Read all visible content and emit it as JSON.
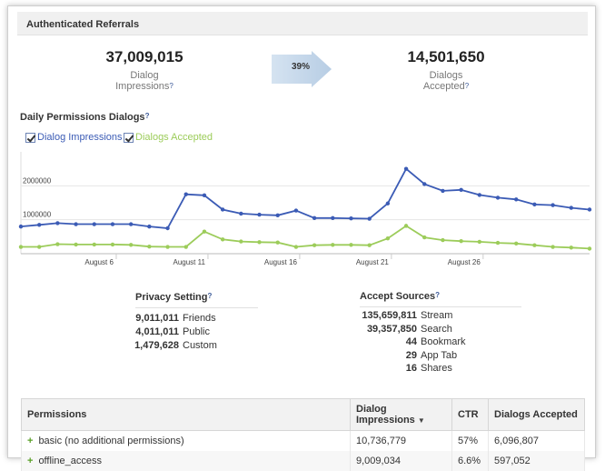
{
  "header": {
    "title": "Authenticated Referrals"
  },
  "summary": {
    "impressions": {
      "value": "37,009,015",
      "label_line1": "Dialog",
      "label_line2": "Impressions"
    },
    "conversion": {
      "percent": "39%"
    },
    "accepted": {
      "value": "14,501,650",
      "label_line1": "Dialogs",
      "label_line2": "Accepted"
    },
    "help_glyph": "?"
  },
  "chart": {
    "title": "Daily Permissions Dialogs",
    "legend": [
      {
        "label": "Dialog Impressions",
        "color": "#3b5bb5"
      },
      {
        "label": "Dialogs Accepted",
        "color": "#9ccc5a"
      }
    ]
  },
  "chart_data": {
    "type": "line",
    "x": [
      "Aug 1",
      "Aug 2",
      "Aug 3",
      "Aug 4",
      "Aug 5",
      "Aug 6",
      "Aug 7",
      "Aug 8",
      "Aug 9",
      "Aug 10",
      "Aug 11",
      "Aug 12",
      "Aug 13",
      "Aug 14",
      "Aug 15",
      "Aug 16",
      "Aug 17",
      "Aug 18",
      "Aug 19",
      "Aug 20",
      "Aug 21",
      "Aug 22",
      "Aug 23",
      "Aug 24",
      "Aug 25",
      "Aug 26",
      "Aug 27",
      "Aug 28",
      "Aug 29",
      "Aug 30",
      "Aug 31",
      "Sep 1"
    ],
    "x_tick_labels": [
      "August 6",
      "August 11",
      "August 16",
      "August 21",
      "August 26"
    ],
    "x_tick_indices": [
      5,
      10,
      15,
      20,
      25
    ],
    "y_tick_labels": [
      "2000000",
      "1000000"
    ],
    "y_ticks": [
      2000000,
      1000000
    ],
    "ylim": [
      0,
      3000000
    ],
    "series": [
      {
        "name": "Dialog Impressions",
        "color": "#3b5bb5",
        "values": [
          800000,
          850000,
          900000,
          870000,
          870000,
          870000,
          870000,
          800000,
          750000,
          1750000,
          1720000,
          1300000,
          1180000,
          1150000,
          1130000,
          1270000,
          1050000,
          1050000,
          1040000,
          1030000,
          1480000,
          2500000,
          2050000,
          1850000,
          1880000,
          1730000,
          1650000,
          1600000,
          1450000,
          1430000,
          1350000,
          1300000
        ]
      },
      {
        "name": "Dialogs Accepted",
        "color": "#9ccc5a",
        "values": [
          200000,
          200000,
          280000,
          270000,
          270000,
          270000,
          260000,
          210000,
          200000,
          200000,
          650000,
          420000,
          360000,
          340000,
          330000,
          200000,
          250000,
          260000,
          260000,
          250000,
          450000,
          820000,
          480000,
          400000,
          370000,
          350000,
          320000,
          300000,
          250000,
          200000,
          180000,
          150000
        ]
      }
    ],
    "grid": true
  },
  "privacy": {
    "title": "Privacy Setting",
    "rows": [
      {
        "value": "9,011,011",
        "label": "Friends"
      },
      {
        "value": "4,011,011",
        "label": "Public"
      },
      {
        "value": "1,479,628",
        "label": "Custom"
      }
    ]
  },
  "sources": {
    "title": "Accept Sources",
    "rows": [
      {
        "value": "135,659,811",
        "label": "Stream"
      },
      {
        "value": "39,357,850",
        "label": "Search"
      },
      {
        "value": "44",
        "label": "Bookmark"
      },
      {
        "value": "29",
        "label": "App Tab"
      },
      {
        "value": "16",
        "label": "Shares"
      }
    ]
  },
  "permissions_table": {
    "columns": [
      "Permissions",
      "Dialog Impressions",
      "CTR",
      "Dialogs Accepted"
    ],
    "sort_glyph": "▼",
    "plus_glyph": "+",
    "rows": [
      {
        "name": "basic (no additional permissions)",
        "impressions": "10,736,779",
        "ctr": "57%",
        "accepted": "6,096,807"
      },
      {
        "name": "offline_access",
        "impressions": "9,009,034",
        "ctr": "6.6%",
        "accepted": "597,052"
      }
    ]
  }
}
